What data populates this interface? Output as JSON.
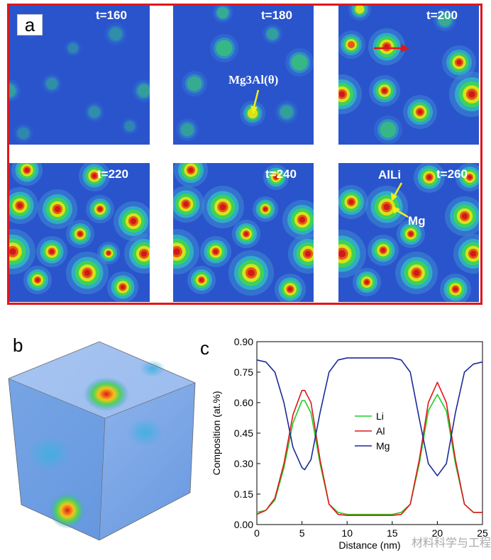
{
  "panel_a": {
    "letter": "a",
    "tiles": [
      {
        "time": "t=160"
      },
      {
        "time": "t=180"
      },
      {
        "time": "t=200"
      },
      {
        "time": "t=220"
      },
      {
        "time": "t=240"
      },
      {
        "time": "t=260"
      }
    ],
    "annotations": {
      "theta_phase": "Mg3Al(θ)",
      "alli": "AlLi",
      "mg": "Mg"
    },
    "colors": {
      "frame": "#e0161b",
      "matrix": "#2a54cc",
      "arrow_yellow": "#f2ee1a",
      "arrow_red": "#e0161b"
    }
  },
  "panel_b": {
    "letter": "b"
  },
  "panel_c": {
    "letter": "c"
  },
  "watermark": "材料科学与工程",
  "chart_data": {
    "type": "line",
    "xlabel": "Distance (nm)",
    "ylabel": "Composition (at.%)",
    "xlim": [
      0,
      25
    ],
    "ylim": [
      0,
      0.9
    ],
    "xticks": [
      "0",
      "5",
      "10",
      "15",
      "20",
      "25"
    ],
    "yticks": [
      "0.00",
      "0.15",
      "0.30",
      "0.45",
      "0.60",
      "0.75",
      "0.90"
    ],
    "legend_position": "center",
    "x": [
      0,
      1,
      2,
      3,
      4,
      5,
      5.3,
      6,
      7,
      8,
      9,
      10,
      11,
      12,
      13,
      14,
      15,
      16,
      17,
      18,
      19,
      20,
      21,
      22,
      23,
      24,
      25
    ],
    "series": [
      {
        "name": "Li",
        "color": "#22cc22",
        "values": [
          0.06,
          0.07,
          0.12,
          0.28,
          0.5,
          0.61,
          0.61,
          0.55,
          0.3,
          0.1,
          0.06,
          0.05,
          0.05,
          0.05,
          0.05,
          0.05,
          0.05,
          0.06,
          0.1,
          0.3,
          0.56,
          0.64,
          0.56,
          0.3,
          0.1,
          0.06,
          0.06
        ]
      },
      {
        "name": "Al",
        "color": "#e0161b",
        "values": [
          0.05,
          0.07,
          0.13,
          0.3,
          0.54,
          0.66,
          0.66,
          0.6,
          0.32,
          0.1,
          0.05,
          0.045,
          0.045,
          0.045,
          0.045,
          0.045,
          0.045,
          0.05,
          0.1,
          0.32,
          0.6,
          0.7,
          0.6,
          0.32,
          0.1,
          0.06,
          0.06
        ]
      },
      {
        "name": "Mg",
        "color": "#1a2a99",
        "values": [
          0.81,
          0.8,
          0.75,
          0.6,
          0.38,
          0.28,
          0.27,
          0.32,
          0.55,
          0.75,
          0.81,
          0.82,
          0.82,
          0.82,
          0.82,
          0.82,
          0.82,
          0.81,
          0.75,
          0.52,
          0.3,
          0.24,
          0.3,
          0.55,
          0.75,
          0.79,
          0.8
        ]
      }
    ]
  }
}
